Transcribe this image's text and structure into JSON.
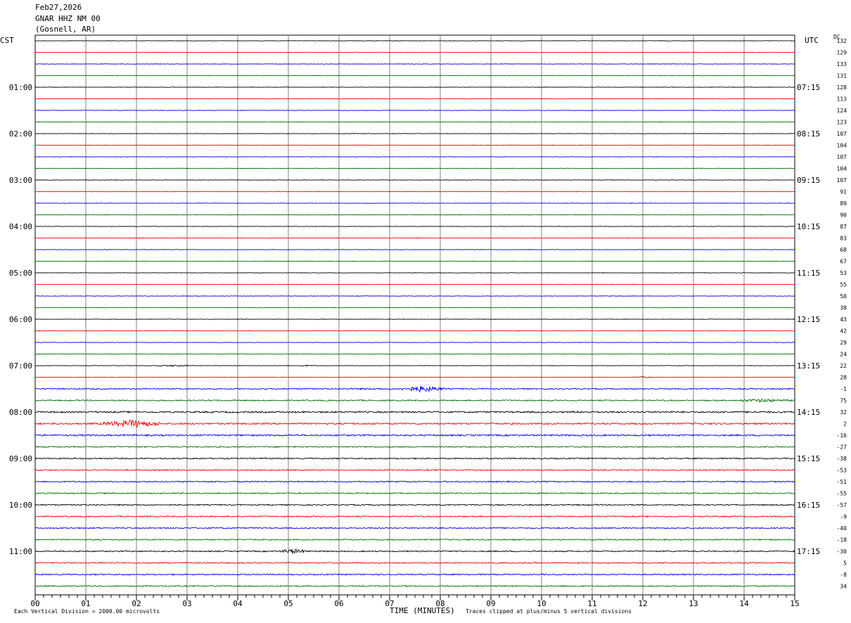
{
  "header": {
    "date": "Feb27,2026",
    "station": "GNAR HHZ NM 00",
    "location": "(Gosnell, AR)"
  },
  "left_tz": "CST",
  "right_tz": "UTC",
  "dc_label": "DC",
  "footer": {
    "left": "Each Vertical Division = 2000.00 microvolts",
    "center": "TIME (MINUTES)",
    "right": "Traces clipped at plus/minus 5 vertical divisions"
  },
  "colors": {
    "trace_cycle": [
      "#000000",
      "#ff0000",
      "#0000ff",
      "#007000"
    ],
    "grid": "#808080"
  },
  "chart_data": {
    "type": "line",
    "title": "",
    "xlabel": "TIME (MINUTES)",
    "ylabel": "",
    "x_ticks": [
      "00",
      "01",
      "02",
      "03",
      "04",
      "05",
      "06",
      "07",
      "08",
      "09",
      "10",
      "11",
      "12",
      "13",
      "14",
      "15"
    ],
    "xlim": [
      0,
      15
    ],
    "trace_count": 48,
    "left_hour_labels": [
      "01:00",
      "02:00",
      "03:00",
      "04:00",
      "05:00",
      "06:00",
      "07:00",
      "08:00",
      "09:00",
      "10:00",
      "11:00"
    ],
    "right_hour_labels": [
      "07:15",
      "08:15",
      "09:15",
      "10:15",
      "11:15",
      "12:15",
      "13:15",
      "14:15",
      "15:15",
      "16:15",
      "17:15"
    ],
    "dc_offsets": [
      "132",
      "129",
      "133",
      "131",
      "128",
      "113",
      "124",
      "123",
      "107",
      "104",
      "107",
      "104",
      "107",
      "91",
      "89",
      "90",
      "87",
      "83",
      "68",
      "67",
      "53",
      "55",
      "50",
      "38",
      "43",
      "42",
      "29",
      "24",
      "22",
      "28",
      "-1",
      "75",
      "32",
      "2",
      "-16",
      "-27",
      "-38",
      "-53",
      "-51",
      "-55",
      "-57",
      "-9",
      "-40",
      "-18",
      "-30",
      "5",
      "-8",
      "34"
    ],
    "events": [
      {
        "trace": 28,
        "start_min": 2.3,
        "end_min": 3.2,
        "amplitude": 1.2
      },
      {
        "trace": 28,
        "start_min": 5.1,
        "end_min": 5.6,
        "amplitude": 1.0
      },
      {
        "trace": 29,
        "start_min": 11.8,
        "end_min": 12.3,
        "amplitude": 1.2
      },
      {
        "trace": 30,
        "start_min": 7.2,
        "end_min": 8.1,
        "amplitude": 4.5
      },
      {
        "trace": 30,
        "start_min": 4.5,
        "end_min": 9.0,
        "amplitude": 1.2
      },
      {
        "trace": 31,
        "start_min": 13.8,
        "end_min": 15.0,
        "amplitude": 2.5
      },
      {
        "trace": 32,
        "start_min": 10.3,
        "end_min": 11.2,
        "amplitude": 1.6
      },
      {
        "trace": 32,
        "start_min": 14.0,
        "end_min": 14.9,
        "amplitude": 1.6
      },
      {
        "trace": 33,
        "start_min": 1.3,
        "end_min": 2.5,
        "amplitude": 5.5
      },
      {
        "trace": 44,
        "start_min": 4.8,
        "end_min": 5.4,
        "amplitude": 3.5
      },
      {
        "trace": 45,
        "start_min": 1.2,
        "end_min": 1.4,
        "amplitude": 1.8
      },
      {
        "trace": 45,
        "start_min": 2.7,
        "end_min": 3.0,
        "amplitude": 1.2
      }
    ]
  }
}
